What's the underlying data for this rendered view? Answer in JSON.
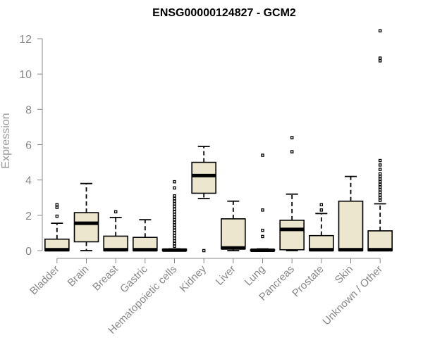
{
  "chart_data": {
    "type": "boxplot",
    "title": "ENSG00000124827 - GCM2",
    "xlabel": "",
    "ylabel": "Expression",
    "ylim": [
      0,
      12.5
    ],
    "yticks": [
      0,
      2,
      4,
      6,
      8,
      10,
      12
    ],
    "grid": false,
    "box_fill": "#ede6ce",
    "categories": [
      "Bladder",
      "Brain",
      "Breast",
      "Gastric",
      "Hematopoietic cells",
      "Kidney",
      "Liver",
      "Lung",
      "Pancreas",
      "Prostate",
      "Skin",
      "Unknown / Other"
    ],
    "boxes": [
      {
        "name": "Bladder",
        "whisker_low": 0,
        "q1": 0,
        "median": 0.05,
        "q3": 0.65,
        "whisker_high": 1.55,
        "outliers": [
          1.95,
          2.45,
          2.6
        ]
      },
      {
        "name": "Brain",
        "whisker_low": 0,
        "q1": 0.5,
        "median": 1.55,
        "q3": 2.15,
        "whisker_high": 3.8,
        "outliers": []
      },
      {
        "name": "Breast",
        "whisker_low": 0,
        "q1": 0,
        "median": 0.05,
        "q3": 0.82,
        "whisker_high": 1.88,
        "outliers": [
          2.2
        ]
      },
      {
        "name": "Gastric",
        "whisker_low": 0,
        "q1": 0,
        "median": 0.05,
        "q3": 0.75,
        "whisker_high": 1.75,
        "outliers": []
      },
      {
        "name": "Hematopoietic cells",
        "whisker_low": 0,
        "q1": 0,
        "median": 0.03,
        "q3": 0.08,
        "whisker_high": 0.1,
        "outliers": [
          0.25,
          0.4,
          0.55,
          0.7,
          0.85,
          1.0,
          1.15,
          1.3,
          1.45,
          1.6,
          1.75,
          1.9,
          2.05,
          2.2,
          2.35,
          2.5,
          2.65,
          2.8,
          2.95,
          3.1,
          3.55,
          3.9
        ]
      },
      {
        "name": "Kidney",
        "whisker_low": 2.95,
        "q1": 3.25,
        "median": 4.25,
        "q3": 5.0,
        "whisker_high": 5.9,
        "outliers": [
          0
        ]
      },
      {
        "name": "Liver",
        "whisker_low": 0,
        "q1": 0.1,
        "median": 0.15,
        "q3": 1.8,
        "whisker_high": 2.8,
        "outliers": []
      },
      {
        "name": "Lung",
        "whisker_low": 0,
        "q1": 0,
        "median": 0.02,
        "q3": 0.05,
        "whisker_high": 0.1,
        "outliers": [
          0.8,
          1.15,
          2.3,
          5.4
        ]
      },
      {
        "name": "Pancreas",
        "whisker_low": 0,
        "q1": 0.05,
        "median": 1.2,
        "q3": 1.72,
        "whisker_high": 3.2,
        "outliers": [
          5.6,
          6.4
        ]
      },
      {
        "name": "Prostate",
        "whisker_low": 0,
        "q1": 0,
        "median": 0.05,
        "q3": 0.85,
        "whisker_high": 2.1,
        "outliers": [
          2.3,
          2.6
        ]
      },
      {
        "name": "Skin",
        "whisker_low": 0,
        "q1": 0,
        "median": 0.05,
        "q3": 2.8,
        "whisker_high": 4.2,
        "outliers": []
      },
      {
        "name": "Unknown / Other",
        "whisker_low": 0,
        "q1": 0,
        "median": 0.05,
        "q3": 1.12,
        "whisker_high": 2.65,
        "outliers": [
          2.85,
          3.0,
          3.15,
          3.3,
          3.45,
          3.6,
          3.75,
          3.9,
          4.05,
          4.2,
          4.35,
          4.6,
          4.85,
          5.1,
          10.75,
          10.9,
          12.45
        ]
      }
    ]
  }
}
